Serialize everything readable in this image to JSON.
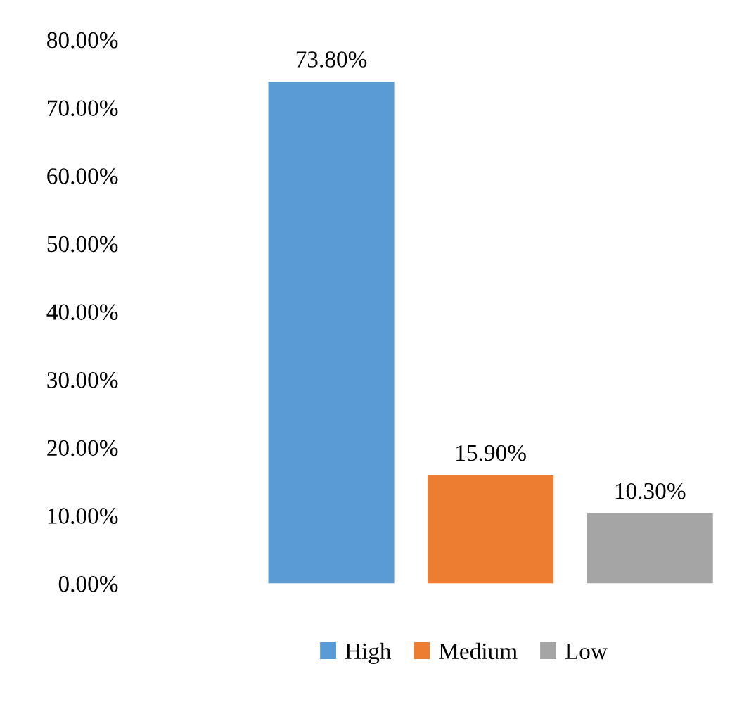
{
  "chart_data": {
    "type": "bar",
    "categories": [
      null
    ],
    "series": [
      {
        "name": "High",
        "color": "#5b9bd5",
        "values": [
          73.8
        ],
        "value_labels": [
          "73.80%"
        ]
      },
      {
        "name": "Medium",
        "color": "#ed7d31",
        "values": [
          15.9
        ],
        "value_labels": [
          "15.90%"
        ]
      },
      {
        "name": "Low",
        "color": "#a5a5a5",
        "values": [
          10.3
        ],
        "value_labels": [
          "10.30%"
        ]
      }
    ],
    "ylim": [
      0,
      80
    ],
    "yticks": [
      {
        "value": 0,
        "label": "0.00%"
      },
      {
        "value": 10,
        "label": "10.00%"
      },
      {
        "value": 20,
        "label": "20.00%"
      },
      {
        "value": 30,
        "label": "30.00%"
      },
      {
        "value": 40,
        "label": "40.00%"
      },
      {
        "value": 50,
        "label": "50.00%"
      },
      {
        "value": 60,
        "label": "60.00%"
      },
      {
        "value": 70,
        "label": "70.00%"
      },
      {
        "value": 80,
        "label": "80.00%"
      }
    ],
    "legend": "bottom",
    "grid": false
  }
}
